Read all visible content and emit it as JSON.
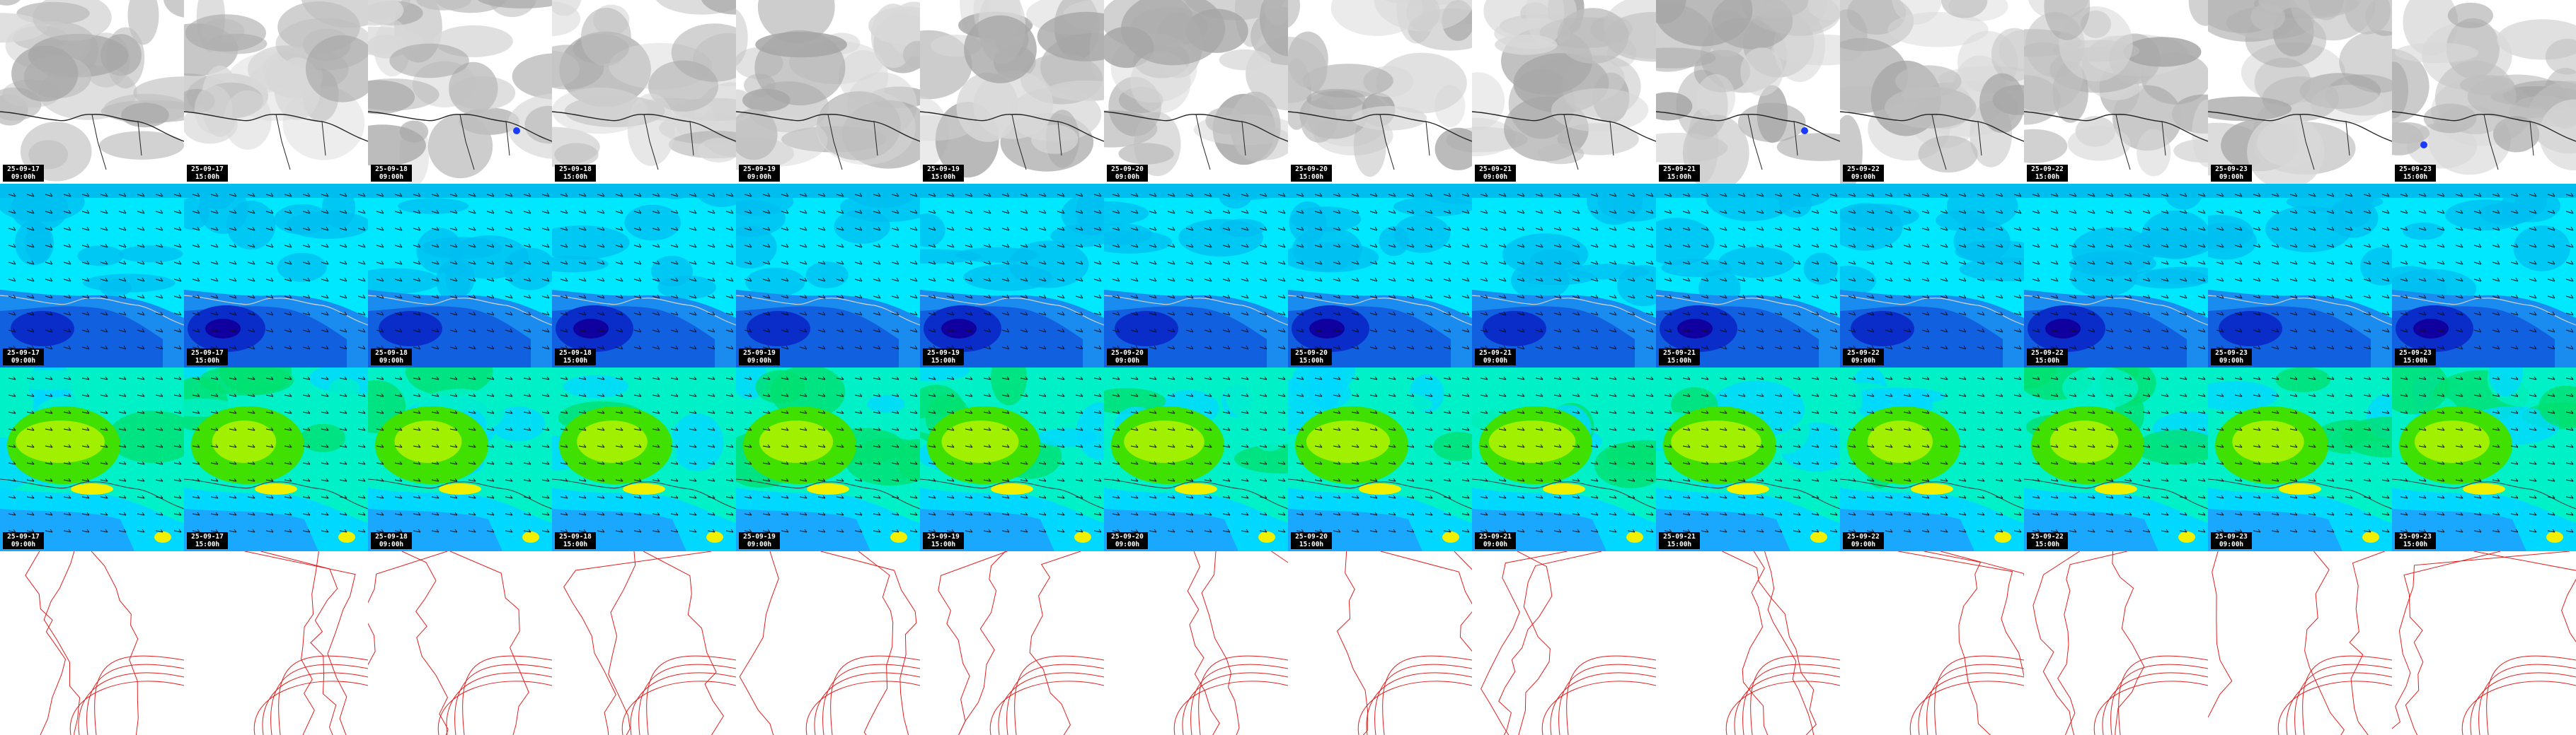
{
  "rows": [
    {
      "id": "cloud",
      "kind": "cloud",
      "colors": [
        "#f4f4f4",
        "#d8d8d8",
        "#bebebe",
        "#a6a6a6"
      ],
      "coast_color": "#222222"
    },
    {
      "id": "field-a",
      "kind": "field-a",
      "colors": [
        "#00e8ff",
        "#00bdf0",
        "#1a8cf0",
        "#1060e0",
        "#0a2cc8",
        "#1000a0"
      ],
      "coast_color": "#d0d0d0"
    },
    {
      "id": "field-b",
      "kind": "field-b",
      "colors": [
        "#1aa8ff",
        "#00d8ff",
        "#00f0c8",
        "#00e070",
        "#40e000",
        "#a0f000",
        "#f0f000"
      ],
      "coast_color": "#404040"
    },
    {
      "id": "contour",
      "kind": "contour",
      "colors": [
        "#e02020"
      ]
    }
  ],
  "panels": [
    {
      "date": "25-09-17",
      "time": "09:00h"
    },
    {
      "date": "25-09-17",
      "time": "15:00h"
    },
    {
      "date": "25-09-18",
      "time": "09:00h"
    },
    {
      "date": "25-09-18",
      "time": "15:00h"
    },
    {
      "date": "25-09-19",
      "time": "09:00h"
    },
    {
      "date": "25-09-19",
      "time": "15:00h"
    },
    {
      "date": "25-09-20",
      "time": "09:00h"
    },
    {
      "date": "25-09-20",
      "time": "15:00h"
    },
    {
      "date": "25-09-21",
      "time": "09:00h"
    },
    {
      "date": "25-09-21",
      "time": "15:00h"
    },
    {
      "date": "25-09-22",
      "time": "09:00h"
    },
    {
      "date": "25-09-22",
      "time": "15:00h"
    },
    {
      "date": "25-09-23",
      "time": "09:00h"
    },
    {
      "date": "25-09-23",
      "time": "15:00h"
    }
  ]
}
